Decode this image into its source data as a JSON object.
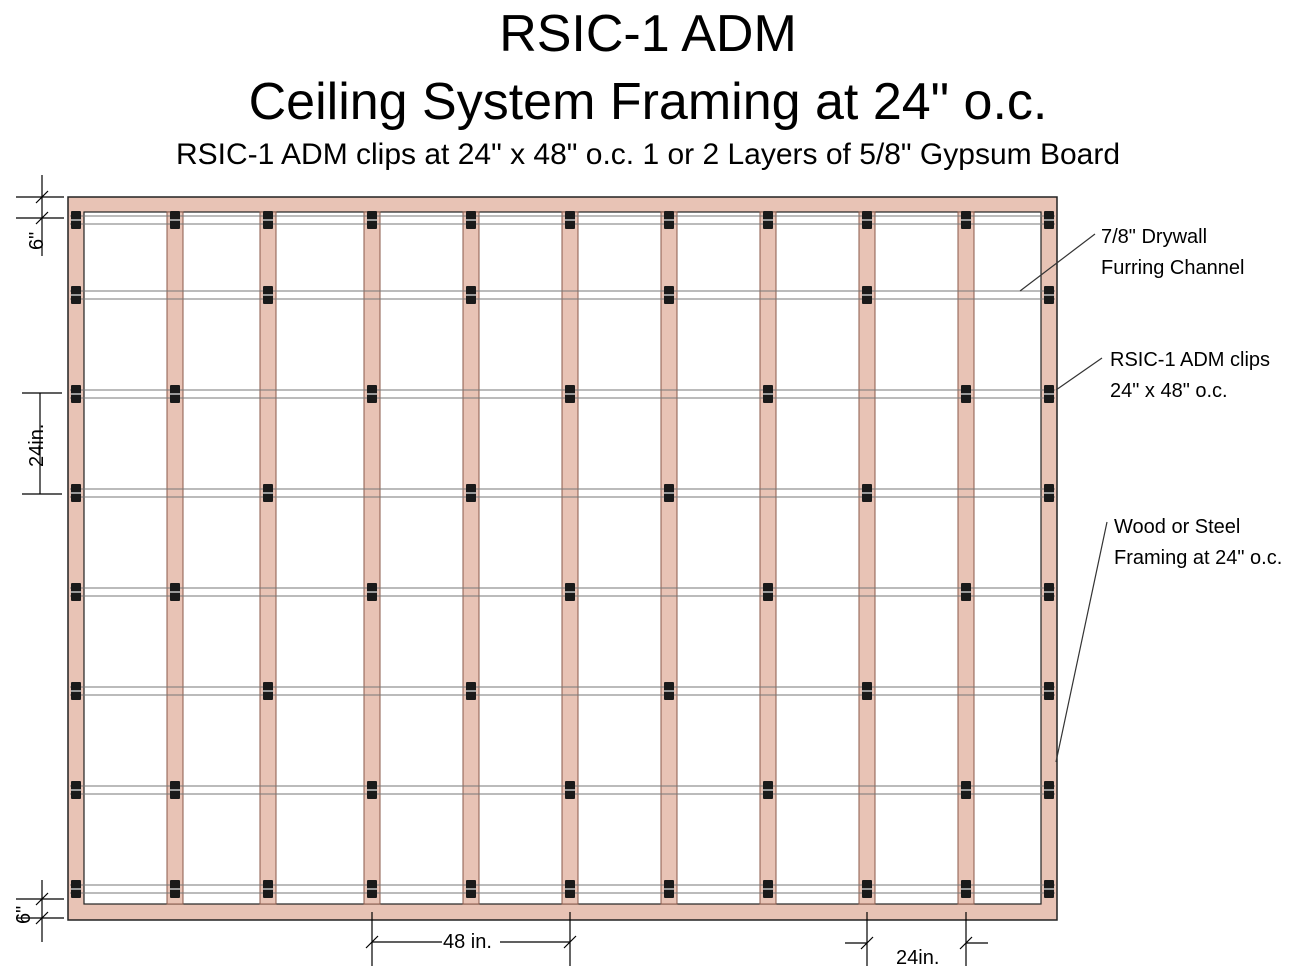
{
  "header": {
    "title_line1": "RSIC-1 ADM",
    "title_line2": "Ceiling System Framing at 24\" o.c.",
    "subtitle": "RSIC-1 ADM clips at 24\" x 48\" o.c. 1 or 2 Layers of 5/8\" Gypsum Board"
  },
  "callouts": {
    "furring_channel": {
      "line1": "7/8\" Drywall",
      "line2": "Furring Channel"
    },
    "clips": {
      "line1": "RSIC-1 ADM clips",
      "line2": "24\" x 48\" o.c."
    },
    "framing": {
      "line1": "Wood or Steel",
      "line2": "Framing at 24\" o.c."
    }
  },
  "dimensions": {
    "top_offset": "6\"",
    "channel_spacing": "24in.",
    "bottom_offset": "6\"",
    "clip_spacing_horizontal": "48 in.",
    "joist_spacing": "24in."
  },
  "colors": {
    "framing_fill": "#e8c3b5",
    "framing_stroke": "#8a5a4a",
    "channel_stroke": "#777777",
    "clip_fill": "#1a1a1a",
    "clip_highlight": "#9a9a9a"
  }
}
